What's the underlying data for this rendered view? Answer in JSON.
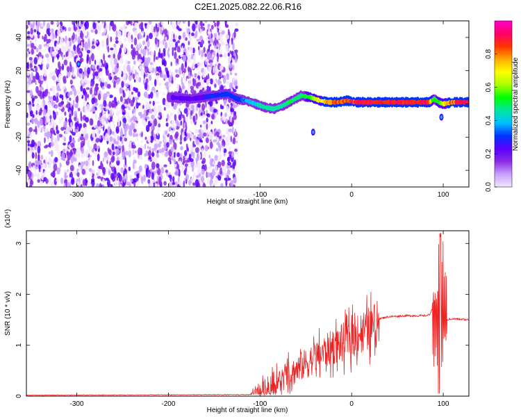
{
  "title": "C2E1.2025.082.22.06.R16",
  "chart_data": [
    {
      "type": "heatmap",
      "name": "spectrogram",
      "xlabel": "Height of straight line (km)",
      "ylabel": "Frequency (Hz)",
      "xlim": [
        -355,
        128
      ],
      "ylim": [
        -50,
        50
      ],
      "xticks": [
        -300,
        -200,
        -100,
        0,
        100
      ],
      "yticks": [
        -40,
        -20,
        0,
        20,
        40
      ],
      "xtick_labels": [
        "-300",
        "-200",
        "-100",
        "0",
        "100"
      ],
      "ytick_labels": [
        "-40",
        "-20",
        "0",
        "20",
        "40"
      ],
      "colorbar": {
        "label": "Normalized spectral amplitude",
        "range": [
          0,
          1
        ],
        "ticks": [
          0.0,
          0.2,
          0.4,
          0.6,
          0.8
        ],
        "tick_labels": [
          "0.0",
          "0.2",
          "0.4",
          "0.6",
          "0.8"
        ],
        "colors": [
          "#f2e6ff",
          "#c9a0ff",
          "#8a2be2",
          "#5a00ff",
          "#0033ff",
          "#00bfff",
          "#00e6a0",
          "#00ff00",
          "#aaff00",
          "#ffff00",
          "#ffaa00",
          "#ff3300",
          "#ff0066",
          "#ff00cc"
        ]
      },
      "noise_region_x": [
        -355,
        -125
      ],
      "signal_track": {
        "x": [
          -200,
          -175,
          -150,
          -135,
          -125,
          -115,
          -105,
          -95,
          -85,
          -75,
          -65,
          -55,
          -45,
          -35,
          -25,
          -15,
          -5,
          5,
          15,
          25,
          35,
          45,
          55,
          65,
          75,
          85,
          90,
          95,
          100,
          110,
          128
        ],
        "y": [
          4,
          3,
          5,
          6,
          3,
          2,
          0,
          -2,
          -3,
          -1,
          2,
          5,
          4,
          2,
          1,
          1,
          2,
          1,
          1,
          1,
          1,
          1,
          1,
          1,
          1,
          1,
          3,
          1,
          0,
          1,
          1
        ],
        "amplitude": [
          0.2,
          0.25,
          0.3,
          0.35,
          0.3,
          0.4,
          0.45,
          0.5,
          0.5,
          0.5,
          0.55,
          0.5,
          0.6,
          0.75,
          0.85,
          0.9,
          0.9,
          0.95,
          0.95,
          0.95,
          0.95,
          0.95,
          0.95,
          0.95,
          0.95,
          0.9,
          0.5,
          0.6,
          0.7,
          0.9,
          0.95
        ]
      },
      "isolated_blobs": [
        {
          "x": -42,
          "y": -17
        },
        {
          "x": 98,
          "y": -8
        },
        {
          "x": -298,
          "y": 24
        }
      ]
    },
    {
      "type": "line",
      "name": "snr",
      "xlabel": "Height of straight line (km)",
      "ylabel": "SNR (10 * v/v)",
      "scale_label": "(x10⁴)",
      "xlim": [
        -355,
        128
      ],
      "ylim": [
        0,
        3.25
      ],
      "xticks": [
        -300,
        -200,
        -100,
        0,
        100
      ],
      "yticks": [
        0,
        1,
        2,
        3
      ],
      "xtick_labels": [
        "-300",
        "-200",
        "-100",
        "0",
        "100"
      ],
      "ytick_labels": [
        "0",
        "1",
        "2",
        "3"
      ],
      "line_color": "#ee2222",
      "envelope": {
        "x": [
          -355,
          -110,
          -100,
          -80,
          -60,
          -40,
          -20,
          0,
          20,
          30,
          40,
          60,
          80,
          85,
          90,
          95,
          97,
          100,
          103,
          110,
          128
        ],
        "y": [
          0.02,
          0.03,
          0.1,
          0.3,
          0.55,
          0.8,
          1.0,
          1.2,
          1.4,
          1.52,
          1.56,
          1.58,
          1.58,
          1.6,
          1.8,
          2.2,
          3.2,
          0.5,
          1.5,
          1.52,
          1.5
        ]
      }
    }
  ]
}
